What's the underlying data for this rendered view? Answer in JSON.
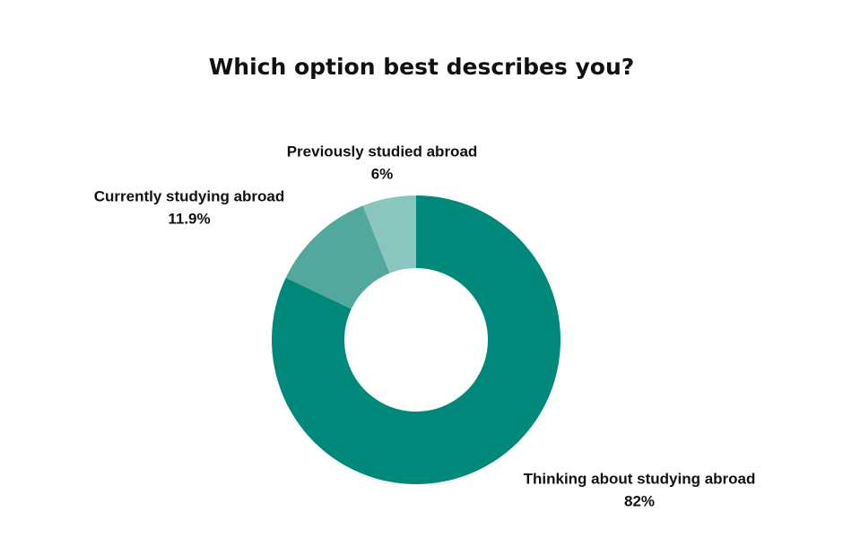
{
  "chart_data": {
    "type": "donut",
    "title": "Which option best describes you?",
    "categories": [
      "Thinking about studying abroad",
      "Currently studying abroad",
      "Previously studied abroad"
    ],
    "values": [
      82,
      11.9,
      6
    ],
    "value_labels": [
      "82%",
      "11.9%",
      "6%"
    ],
    "colors": [
      "#00897b",
      "#52a89c",
      "#8ac6bf"
    ]
  }
}
